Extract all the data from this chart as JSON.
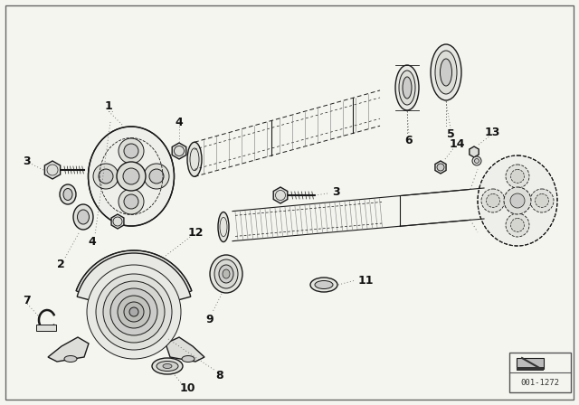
{
  "bg_color": "#f5f5f0",
  "line_color": "#1a1a1a",
  "watermark": "001-1272",
  "border_color": "#888888",
  "white": "#ffffff"
}
